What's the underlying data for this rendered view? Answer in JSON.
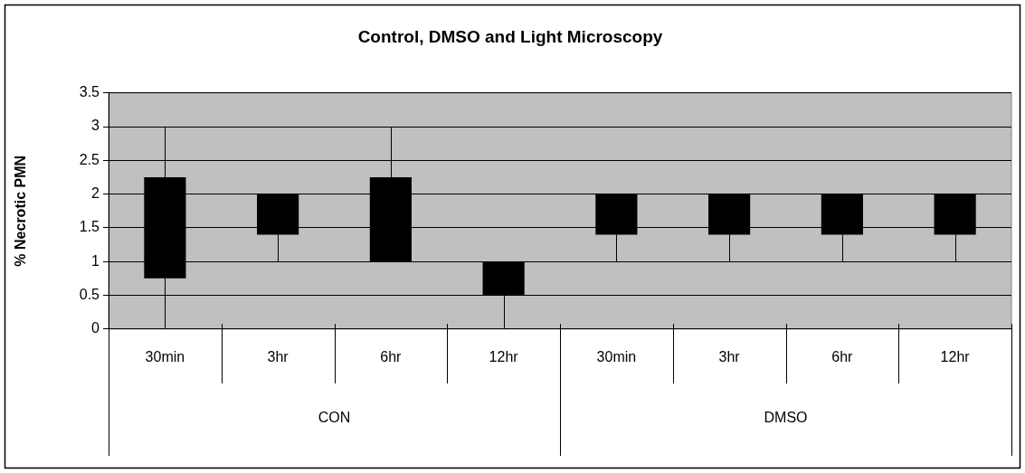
{
  "chart_data": {
    "type": "candlestick",
    "title": "Control, DMSO and Light Microscopy",
    "ylabel": "% Necrotic PMN",
    "categories": [
      "30min",
      "3hr",
      "6hr",
      "12hr",
      "30min",
      "3hr",
      "6hr",
      "12hr"
    ],
    "ohlc": [
      [
        2.25,
        3,
        0,
        0.75
      ],
      [
        2,
        2,
        1,
        1.4
      ],
      [
        2.25,
        3,
        1,
        1
      ],
      [
        1,
        1,
        0,
        0.5
      ],
      [
        2,
        2,
        1,
        1.4
      ],
      [
        2,
        2,
        1,
        1.4
      ],
      [
        2,
        2,
        1,
        1.4
      ],
      [
        2,
        2,
        1,
        1.4
      ]
    ],
    "ylim": [
      0,
      3.5
    ],
    "yticks": [
      0,
      0.5,
      1,
      1.5,
      2,
      2.5,
      3,
      3.5
    ],
    "grid": "y",
    "legend": false,
    "annotations": [
      "CON",
      "DMSO"
    ]
  }
}
